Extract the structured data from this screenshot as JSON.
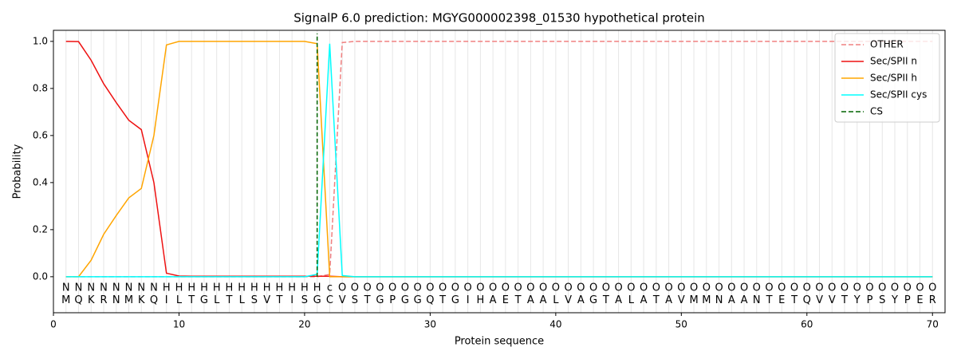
{
  "chart_data": {
    "type": "line",
    "title": "SignalP 6.0 prediction: MGYG000002398_01530 hypothetical protein",
    "x_label": "Protein sequence",
    "y_label": "Probability",
    "x": [
      1,
      2,
      3,
      4,
      5,
      6,
      7,
      8,
      9,
      10,
      11,
      12,
      13,
      14,
      15,
      16,
      17,
      18,
      19,
      20,
      21,
      22,
      23,
      24,
      25,
      26,
      27,
      28,
      29,
      30,
      31,
      32,
      33,
      34,
      35,
      36,
      37,
      38,
      39,
      40,
      41,
      42,
      43,
      44,
      45,
      46,
      47,
      48,
      49,
      50,
      51,
      52,
      53,
      54,
      55,
      56,
      57,
      58,
      59,
      60,
      61,
      62,
      63,
      64,
      65,
      66,
      67,
      68,
      69,
      70
    ],
    "xlim": [
      0,
      71
    ],
    "xticks": [
      0,
      10,
      20,
      30,
      40,
      50,
      60,
      70
    ],
    "ylim": [
      -0.153,
      1.047
    ],
    "yticks": [
      {
        "value": 0,
        "label": "0.0"
      },
      {
        "value": 0.2,
        "label": "0.2"
      },
      {
        "value": 0.4,
        "label": "0.4"
      },
      {
        "value": 0.6,
        "label": "0.6"
      },
      {
        "value": 0.8,
        "label": "0.8"
      },
      {
        "value": 1.0,
        "label": "1.0"
      }
    ],
    "grid": true,
    "legend": "upper right",
    "series": [
      {
        "name": "OTHER",
        "color": "#f08080",
        "dashed": true,
        "values": [
          0,
          0,
          0,
          0,
          0,
          0,
          0,
          0,
          0,
          0,
          0,
          0,
          0,
          0,
          0,
          0,
          0,
          0,
          0,
          0,
          0,
          0.01,
          0.995,
          1,
          1,
          1,
          1,
          1,
          1,
          1,
          1,
          1,
          1,
          1,
          1,
          1,
          1,
          1,
          1,
          1,
          1,
          1,
          1,
          1,
          1,
          1,
          1,
          1,
          1,
          1,
          1,
          1,
          1,
          1,
          1,
          1,
          1,
          1,
          1,
          1,
          1,
          1,
          1,
          1,
          1,
          1,
          1,
          1,
          1,
          1
        ]
      },
      {
        "name": "Sec/SPII n",
        "color": "#ee1111",
        "values": [
          1.0,
          0.999,
          0.92,
          0.82,
          0.74,
          0.665,
          0.625,
          0.4,
          0.015,
          0.003,
          0.002,
          0.002,
          0.002,
          0.002,
          0.002,
          0.002,
          0.002,
          0.002,
          0.002,
          0.002,
          0.002,
          0.002,
          0,
          0,
          0,
          0,
          0,
          0,
          0,
          0,
          0,
          0,
          0,
          0,
          0,
          0,
          0,
          0,
          0,
          0,
          0,
          0,
          0,
          0,
          0,
          0,
          0,
          0,
          0,
          0,
          0,
          0,
          0,
          0,
          0,
          0,
          0,
          0,
          0,
          0,
          0,
          0,
          0,
          0,
          0,
          0,
          0,
          0,
          0,
          0
        ]
      },
      {
        "name": "Sec/SPII h",
        "color": "#ffa500",
        "values": [
          0,
          0,
          0.07,
          0.18,
          0.26,
          0.335,
          0.375,
          0.6,
          0.985,
          1.0,
          1.0,
          1.0,
          1.0,
          1.0,
          1.0,
          1.0,
          1.0,
          1.0,
          1.0,
          1.0,
          0.99,
          0,
          0,
          0,
          0,
          0,
          0,
          0,
          0,
          0,
          0,
          0,
          0,
          0,
          0,
          0,
          0,
          0,
          0,
          0,
          0,
          0,
          0,
          0,
          0,
          0,
          0,
          0,
          0,
          0,
          0,
          0,
          0,
          0,
          0,
          0,
          0,
          0,
          0,
          0,
          0,
          0,
          0,
          0,
          0,
          0,
          0,
          0,
          0,
          0
        ]
      },
      {
        "name": "Sec/SPII cys",
        "color": "#00ffff",
        "values": [
          0,
          0,
          0,
          0,
          0,
          0,
          0,
          0,
          0,
          0,
          0,
          0,
          0,
          0,
          0,
          0,
          0,
          0,
          0,
          0,
          0.01,
          0.99,
          0.005,
          0,
          0,
          0,
          0,
          0,
          0,
          0,
          0,
          0,
          0,
          0,
          0,
          0,
          0,
          0,
          0,
          0,
          0,
          0,
          0,
          0,
          0,
          0,
          0,
          0,
          0,
          0,
          0,
          0,
          0,
          0,
          0,
          0,
          0,
          0,
          0,
          0,
          0,
          0,
          0,
          0,
          0,
          0,
          0,
          0,
          0,
          0
        ]
      }
    ],
    "cs": {
      "name": "CS",
      "color": "#006400",
      "x": 21
    },
    "residues": [
      "M",
      "Q",
      "K",
      "R",
      "N",
      "M",
      "K",
      "Q",
      "I",
      "L",
      "T",
      "G",
      "L",
      "T",
      "L",
      "S",
      "V",
      "T",
      "I",
      "S",
      "G",
      "C",
      "V",
      "S",
      "T",
      "G",
      "P",
      "G",
      "G",
      "Q",
      "T",
      "G",
      "I",
      "H",
      "A",
      "E",
      "T",
      "A",
      "A",
      "L",
      "V",
      "A",
      "G",
      "T",
      "A",
      "L",
      "A",
      "T",
      "A",
      "V",
      "M",
      "M",
      "N",
      "A",
      "A",
      "N",
      "T",
      "E",
      "T",
      "Q",
      "V",
      "V",
      "T",
      "Y",
      "P",
      "S",
      "Y",
      "P",
      "E",
      "R"
    ],
    "region_labels": [
      "N",
      "N",
      "N",
      "N",
      "N",
      "N",
      "N",
      "N",
      "H",
      "H",
      "H",
      "H",
      "H",
      "H",
      "H",
      "H",
      "H",
      "H",
      "H",
      "H",
      "H",
      "c",
      "O",
      "O",
      "O",
      "O",
      "O",
      "O",
      "O",
      "O",
      "O",
      "O",
      "O",
      "O",
      "O",
      "O",
      "O",
      "O",
      "O",
      "O",
      "O",
      "O",
      "O",
      "O",
      "O",
      "O",
      "O",
      "O",
      "O",
      "O",
      "O",
      "O",
      "O",
      "O",
      "O",
      "O",
      "O",
      "O",
      "O",
      "O",
      "O",
      "O",
      "O",
      "O",
      "O",
      "O",
      "O",
      "O",
      "O",
      "O"
    ],
    "region_colors": {
      "N": "#ee1111",
      "H": "#ffa500",
      "c": "#00e5e5",
      "O": "#808080"
    }
  }
}
